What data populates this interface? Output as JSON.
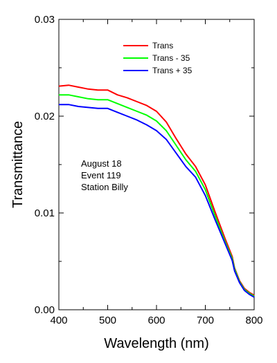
{
  "chart_data": {
    "type": "line",
    "title": "",
    "xlabel": "Wavelength (nm)",
    "ylabel": "Transmittance",
    "xlim": [
      400,
      800
    ],
    "ylim": [
      0,
      0.03
    ],
    "xticks": [
      400,
      500,
      600,
      700,
      800
    ],
    "xtick_labels": [
      "400",
      "500",
      "600",
      "700",
      "800"
    ],
    "yticks": [
      0,
      0.01,
      0.02,
      0.03
    ],
    "ytick_labels": [
      "0.00",
      "0.01",
      "0.02",
      "0.03"
    ],
    "grid": false,
    "legend_position": "top-right",
    "annotation": [
      "August 18",
      "Event 119",
      "Station Billy"
    ],
    "x": [
      400,
      420,
      440,
      460,
      480,
      500,
      520,
      540,
      560,
      580,
      600,
      620,
      640,
      660,
      680,
      700,
      720,
      740,
      755,
      760,
      770,
      780,
      790,
      800
    ],
    "series": [
      {
        "name": "Trans",
        "color": "#ff0000",
        "values": [
          0.0231,
          0.0232,
          0.023,
          0.0228,
          0.0227,
          0.0227,
          0.0222,
          0.0219,
          0.0215,
          0.0211,
          0.0205,
          0.0194,
          0.0177,
          0.0161,
          0.0148,
          0.0129,
          0.0101,
          0.0074,
          0.0055,
          0.0043,
          0.003,
          0.0022,
          0.0018,
          0.0015
        ]
      },
      {
        "name": "Trans - 35",
        "color": "#00ff00",
        "values": [
          0.0222,
          0.0222,
          0.022,
          0.0218,
          0.0217,
          0.0217,
          0.0213,
          0.0209,
          0.0205,
          0.0201,
          0.0195,
          0.0185,
          0.017,
          0.0155,
          0.0143,
          0.0124,
          0.0097,
          0.0071,
          0.0053,
          0.0042,
          0.0029,
          0.0021,
          0.0017,
          0.0014
        ]
      },
      {
        "name": "Trans + 35",
        "color": "#0000ff",
        "values": [
          0.0212,
          0.0212,
          0.021,
          0.0209,
          0.0208,
          0.0208,
          0.0204,
          0.02,
          0.0196,
          0.0191,
          0.0185,
          0.0176,
          0.0162,
          0.0148,
          0.0137,
          0.0118,
          0.0093,
          0.0069,
          0.0051,
          0.004,
          0.0028,
          0.002,
          0.0016,
          0.0013
        ]
      }
    ]
  }
}
